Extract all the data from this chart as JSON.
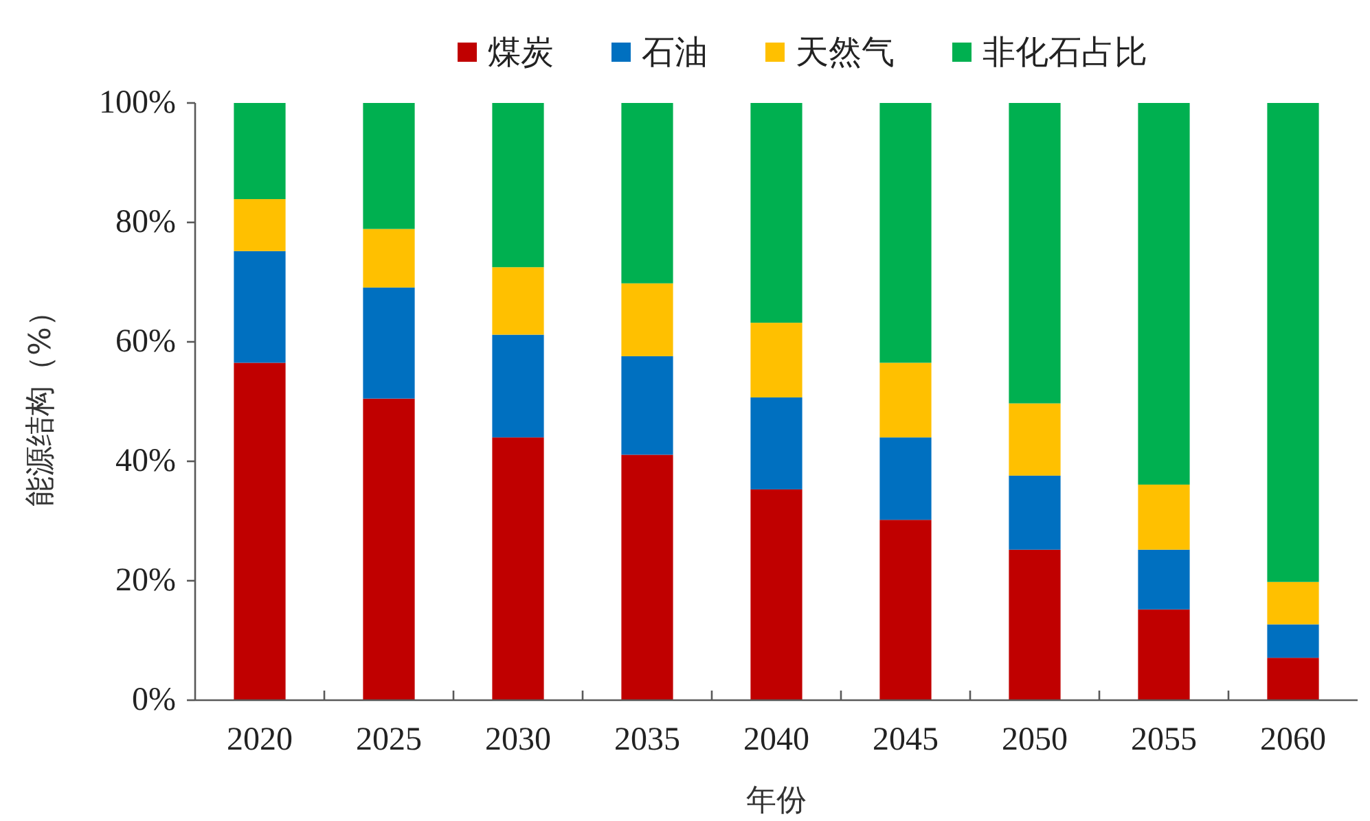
{
  "chart_data": {
    "type": "bar",
    "stacked": true,
    "xlabel": "年份",
    "ylabel": "能源结构（%）",
    "categories": [
      "2020",
      "2025",
      "2030",
      "2035",
      "2040",
      "2045",
      "2050",
      "2055",
      "2060"
    ],
    "series": [
      {
        "name": "煤炭",
        "color": "#c00000",
        "values": [
          56.5,
          50.5,
          44.0,
          41.1,
          35.3,
          30.2,
          25.2,
          15.2,
          7.1
        ]
      },
      {
        "name": "石油",
        "color": "#0070c0",
        "values": [
          18.7,
          18.6,
          17.2,
          16.5,
          15.4,
          13.8,
          12.4,
          10.0,
          5.6
        ]
      },
      {
        "name": "天然气",
        "color": "#ffc000",
        "values": [
          8.7,
          9.8,
          11.3,
          12.2,
          12.5,
          12.5,
          12.1,
          10.9,
          7.1
        ]
      },
      {
        "name": "非化石占比",
        "color": "#00b050",
        "values": [
          16.1,
          21.1,
          27.5,
          30.2,
          36.8,
          43.5,
          50.3,
          63.9,
          80.2
        ]
      }
    ],
    "ylim": [
      0,
      100
    ],
    "yticks": [
      {
        "value": 0,
        "label": "0%"
      },
      {
        "value": 20,
        "label": "20%"
      },
      {
        "value": 40,
        "label": "40%"
      },
      {
        "value": 60,
        "label": "60%"
      },
      {
        "value": 80,
        "label": "80%"
      },
      {
        "value": 100,
        "label": "100%"
      }
    ],
    "grid": false,
    "legend": "top"
  }
}
